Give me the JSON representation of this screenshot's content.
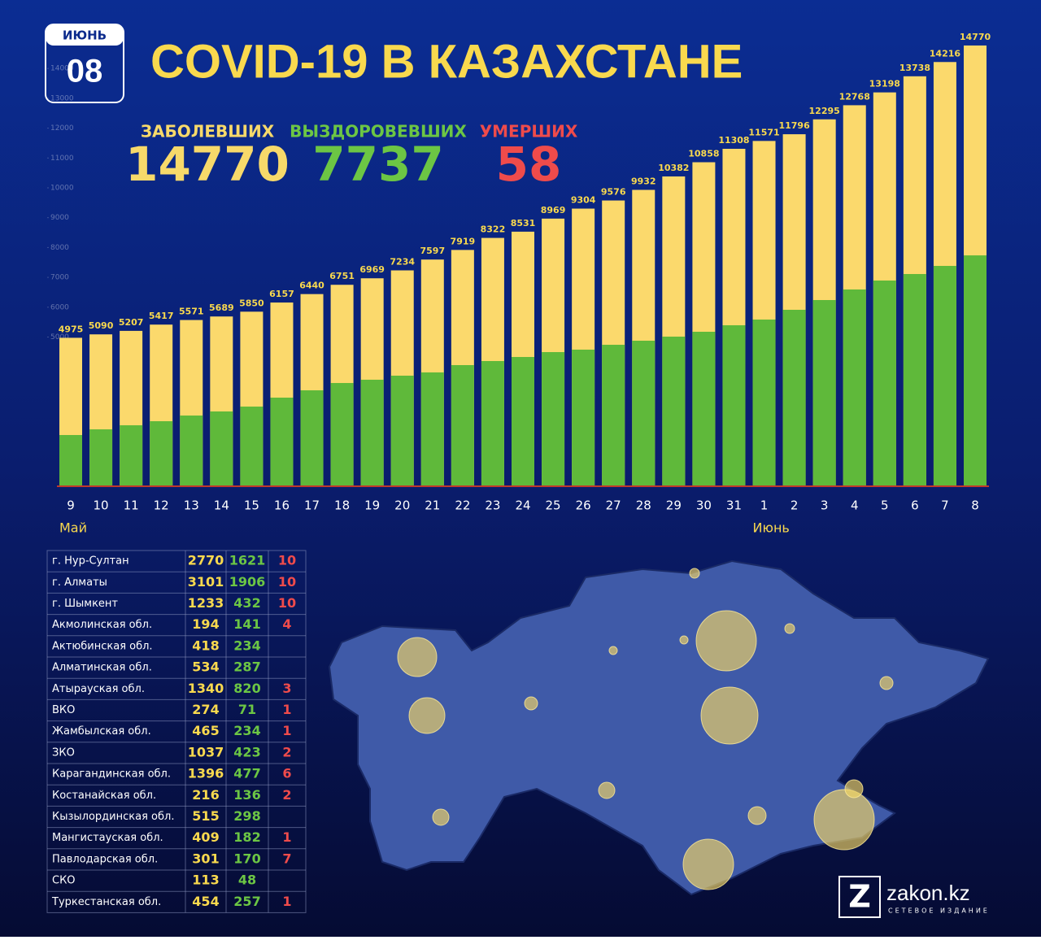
{
  "calendar": {
    "month": "ИЮНЬ",
    "day": "08"
  },
  "chart_data": {
    "type": "bar",
    "title": "COVID-19 В КАЗАХСТАНЕ",
    "summary": [
      {
        "label": "ЗАБОЛЕВШИХ",
        "value": 14770,
        "color": "#f7d96a"
      },
      {
        "label": "ВЫЗДОРОВЕВШИХ",
        "value": 7737,
        "color": "#6cc644"
      },
      {
        "label": "УМЕРШИХ",
        "value": 58,
        "color": "#ef4b4b"
      }
    ],
    "categories": [
      "9",
      "10",
      "11",
      "12",
      "13",
      "14",
      "15",
      "16",
      "17",
      "18",
      "19",
      "20",
      "21",
      "22",
      "23",
      "24",
      "25",
      "26",
      "27",
      "28",
      "29",
      "30",
      "31",
      "1",
      "2",
      "3",
      "4",
      "5",
      "6",
      "7",
      "8"
    ],
    "month_labels": [
      {
        "label": "Май",
        "index": 0
      },
      {
        "label": "Июнь",
        "index": 23
      }
    ],
    "series": [
      {
        "name": "ЗАБОЛЕВШИХ",
        "color": "#fbd96c",
        "values": [
          4975,
          5090,
          5207,
          5417,
          5571,
          5689,
          5850,
          6157,
          6440,
          6751,
          6969,
          7234,
          7597,
          7919,
          8322,
          8531,
          8969,
          9304,
          9576,
          9932,
          10382,
          10858,
          11308,
          11571,
          11796,
          12295,
          12768,
          13198,
          13738,
          14216,
          14770
        ]
      },
      {
        "name": "ВЫЗДОРОВЕВШИХ",
        "color": "#5fb93a",
        "values": [
          1717,
          1907,
          2044,
          2180,
          2370,
          2507,
          2670,
          2970,
          3215,
          3460,
          3570,
          3706,
          3815,
          4060,
          4196,
          4332,
          4496,
          4578,
          4741,
          4877,
          5014,
          5177,
          5395,
          5586,
          5913,
          6240,
          6594,
          6894,
          7112,
          7384,
          7737
        ]
      }
    ],
    "ylim": [
      0,
      16000
    ],
    "yticks": [
      5000,
      6000,
      7000,
      8000,
      9000,
      10000,
      11000,
      12000,
      13000,
      14000
    ],
    "overlap": true
  },
  "table": {
    "rows": [
      [
        "г. Нур-Султан",
        2770,
        1621,
        10
      ],
      [
        "г. Алматы",
        3101,
        1906,
        10
      ],
      [
        "г. Шымкент",
        1233,
        432,
        10
      ],
      [
        "Акмолинская обл.",
        194,
        141,
        4
      ],
      [
        "Актюбинская обл.",
        418,
        234,
        null
      ],
      [
        "Алматинская обл.",
        534,
        287,
        null
      ],
      [
        "Атырауская обл.",
        1340,
        820,
        3
      ],
      [
        "ВКО",
        274,
        71,
        1
      ],
      [
        "Жамбылская обл.",
        465,
        234,
        1
      ],
      [
        "ЗКО",
        1037,
        423,
        2
      ],
      [
        "Карагандинская обл.",
        1396,
        477,
        6
      ],
      [
        "Костанайская обл.",
        216,
        136,
        2
      ],
      [
        "Кызылординская обл.",
        515,
        298,
        null
      ],
      [
        "Мангистауская обл.",
        409,
        182,
        1
      ],
      [
        "Павлодарская обл.",
        301,
        170,
        7
      ],
      [
        "СКО",
        113,
        48,
        null
      ],
      [
        "Туркестанская обл.",
        454,
        257,
        1
      ]
    ]
  },
  "logo": {
    "name": "zakon.kz",
    "tagline": "СЕТЕВОЕ ИЗДАНИЕ"
  }
}
